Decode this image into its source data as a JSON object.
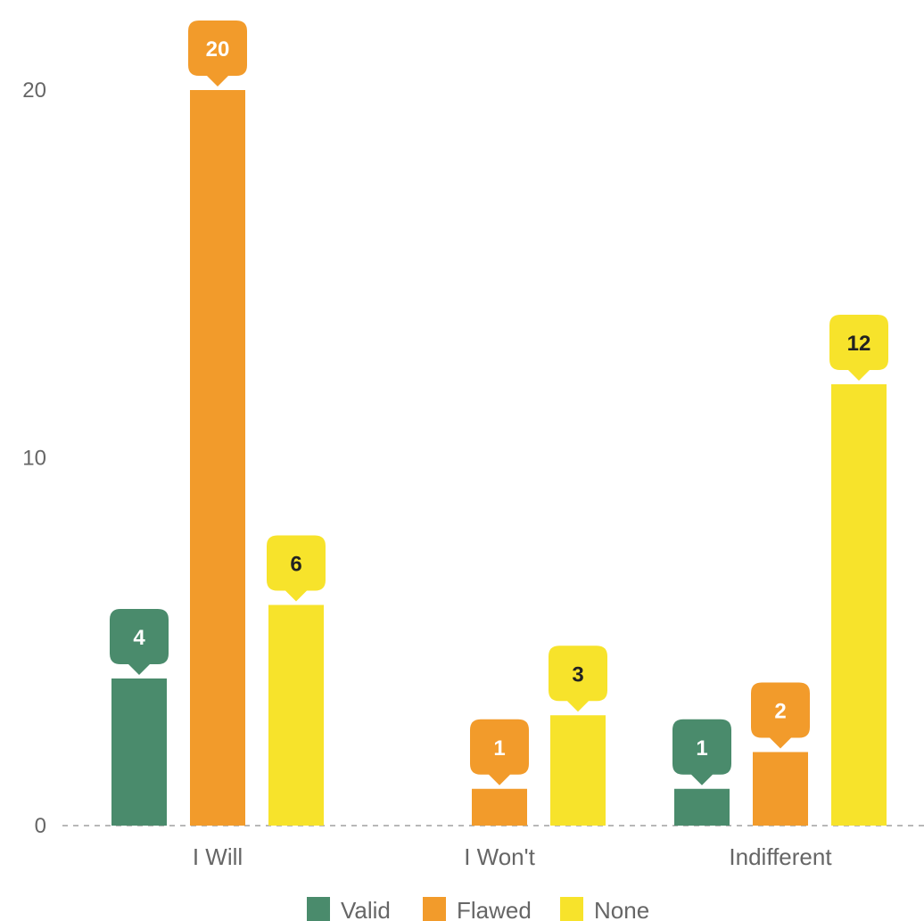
{
  "chart_data": {
    "type": "bar",
    "title": "",
    "xlabel": "",
    "ylabel": "",
    "ylim": [
      0,
      22
    ],
    "yticks": [
      0,
      10,
      20
    ],
    "grid": false,
    "zero_line": "dashed",
    "legend_position": "bottom-center",
    "categories": [
      "I Will",
      "I Won't",
      "Indifferent"
    ],
    "series": [
      {
        "name": "Valid",
        "color": "#4a8b6c",
        "label_color": "#ffffff",
        "values": [
          4,
          null,
          1
        ]
      },
      {
        "name": "Flawed",
        "color": "#f29b2b",
        "label_color": "#ffffff",
        "values": [
          20,
          1,
          2
        ]
      },
      {
        "name": "None",
        "color": "#f7e32b",
        "label_color": "#222222",
        "values": [
          6,
          3,
          12
        ]
      }
    ]
  }
}
